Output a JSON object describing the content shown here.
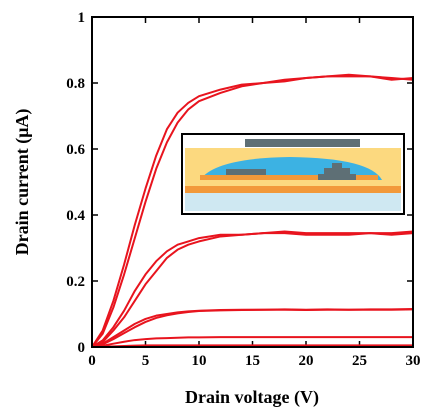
{
  "chart_data": {
    "type": "line",
    "xlabel": "Drain voltage (V)",
    "ylabel": "Drain current (μA)",
    "x": [
      0,
      1,
      2,
      3,
      4,
      5,
      6,
      7,
      8,
      9,
      10,
      12,
      14,
      16,
      18,
      20,
      22,
      24,
      26,
      28,
      30
    ],
    "series": [
      {
        "color": "#e8141e",
        "values": [
          0,
          0.05,
          0.14,
          0.25,
          0.37,
          0.48,
          0.58,
          0.66,
          0.71,
          0.74,
          0.76,
          0.78,
          0.795,
          0.8,
          0.81,
          0.815,
          0.82,
          0.825,
          0.82,
          0.81,
          0.815
        ]
      },
      {
        "color": "#e8141e",
        "values": [
          0,
          0.04,
          0.12,
          0.22,
          0.33,
          0.44,
          0.54,
          0.62,
          0.68,
          0.72,
          0.745,
          0.77,
          0.79,
          0.8,
          0.805,
          0.815,
          0.82,
          0.82,
          0.82,
          0.815,
          0.81
        ]
      },
      {
        "color": "#e8141e",
        "values": [
          0,
          0.02,
          0.06,
          0.11,
          0.17,
          0.22,
          0.26,
          0.29,
          0.31,
          0.32,
          0.33,
          0.34,
          0.34,
          0.345,
          0.35,
          0.345,
          0.345,
          0.345,
          0.345,
          0.345,
          0.35
        ]
      },
      {
        "color": "#e8141e",
        "values": [
          0,
          0.015,
          0.05,
          0.09,
          0.14,
          0.19,
          0.23,
          0.27,
          0.295,
          0.31,
          0.32,
          0.335,
          0.34,
          0.345,
          0.345,
          0.34,
          0.34,
          0.34,
          0.345,
          0.34,
          0.345
        ]
      },
      {
        "color": "#e8141e",
        "values": [
          0,
          0.01,
          0.03,
          0.05,
          0.07,
          0.085,
          0.095,
          0.1,
          0.105,
          0.108,
          0.11,
          0.112,
          0.113,
          0.113,
          0.114,
          0.113,
          0.114,
          0.113,
          0.114,
          0.114,
          0.115
        ]
      },
      {
        "color": "#e8141e",
        "values": [
          0,
          0.008,
          0.024,
          0.042,
          0.06,
          0.076,
          0.088,
          0.096,
          0.102,
          0.106,
          0.109,
          0.111,
          0.112,
          0.113,
          0.113,
          0.112,
          0.113,
          0.113,
          0.113,
          0.113,
          0.114
        ]
      },
      {
        "color": "#e8141e",
        "values": [
          0,
          0.004,
          0.01,
          0.016,
          0.021,
          0.024,
          0.026,
          0.027,
          0.028,
          0.029,
          0.029,
          0.03,
          0.03,
          0.03,
          0.03,
          0.03,
          0.03,
          0.03,
          0.03,
          0.03,
          0.03
        ]
      },
      {
        "color": "#e8141e",
        "values": [
          0,
          0.001,
          0.002,
          0.003,
          0.004,
          0.005,
          0.005,
          0.005,
          0.005,
          0.005,
          0.005,
          0.005,
          0.005,
          0.005,
          0.005,
          0.005,
          0.005,
          0.005,
          0.005,
          0.005,
          0.005
        ]
      }
    ],
    "xlim": [
      0,
      30
    ],
    "xticks": [
      0,
      5,
      10,
      15,
      20,
      25,
      30
    ],
    "ylim": [
      0,
      1
    ],
    "yticks": [
      0,
      0.2,
      0.4,
      0.6,
      0.8,
      1
    ]
  }
}
